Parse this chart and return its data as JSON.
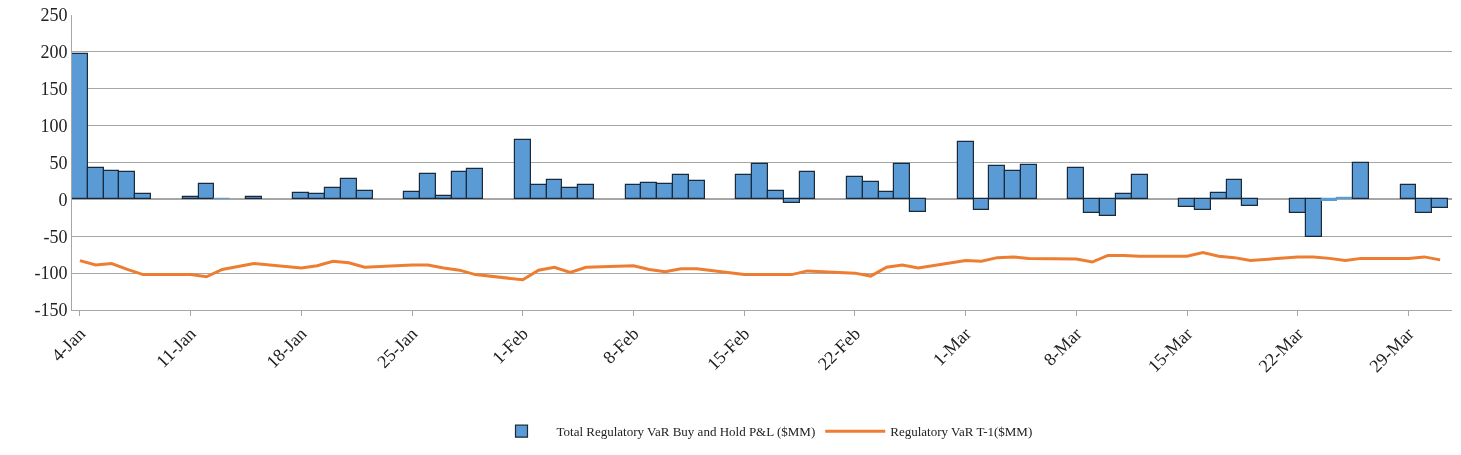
{
  "chart_data": {
    "type": "bar",
    "xlim": [
      "--01-03T12:00",
      "--03-31T18:00"
    ],
    "xticks": [
      {
        "value": "--01-04",
        "label": "4-Jan"
      },
      {
        "value": "--01-11",
        "label": "11-Jan"
      },
      {
        "value": "--01-18",
        "label": "18-Jan"
      },
      {
        "value": "--01-25",
        "label": "25-Jan"
      },
      {
        "value": "--02-01",
        "label": "1-Feb"
      },
      {
        "value": "--02-08",
        "label": "8-Feb"
      },
      {
        "value": "--02-15",
        "label": "15-Feb"
      },
      {
        "value": "--02-22",
        "label": "22-Feb"
      },
      {
        "value": "--03-01",
        "label": "1-Mar"
      },
      {
        "value": "--03-08",
        "label": "8-Mar"
      },
      {
        "value": "--03-15",
        "label": "15-Mar"
      },
      {
        "value": "--03-22",
        "label": "22-Mar"
      },
      {
        "value": "--03-29",
        "label": "29-Mar"
      }
    ],
    "ylim": [
      -150,
      250
    ],
    "yticks": [
      -150,
      -100,
      -50,
      0,
      50,
      100,
      150,
      200,
      250
    ],
    "grid": "y",
    "legend": "bottom",
    "series": [
      {
        "name": "Total Regulatory VaR Buy and Hold P&L ($MM)",
        "color": "#5b9bd5",
        "x": [
          "--01-04",
          "--01-05",
          "--01-06",
          "--01-07",
          "--01-08",
          "--01-11",
          "--01-12",
          "--01-13",
          "--01-15",
          "--01-18",
          "--01-19",
          "--01-20",
          "--01-21",
          "--01-22",
          "--01-25",
          "--01-26",
          "--01-27",
          "--01-28",
          "--01-29",
          "--02-01",
          "--02-02",
          "--02-03",
          "--02-04",
          "--02-05",
          "--02-08",
          "--02-09",
          "--02-10",
          "--02-11",
          "--02-12",
          "--02-15",
          "--02-16",
          "--02-17",
          "--02-18",
          "--02-19",
          "--02-22",
          "--02-23",
          "--02-24",
          "--02-25",
          "--02-26",
          "--03-01",
          "--03-02",
          "--03-03",
          "--03-04",
          "--03-05",
          "--03-08",
          "--03-09",
          "--03-10",
          "--03-11",
          "--03-12",
          "--03-15",
          "--03-16",
          "--03-17",
          "--03-18",
          "--03-19",
          "--03-22",
          "--03-23",
          "--03-24",
          "--03-25",
          "--03-26",
          "--03-29",
          "--03-30",
          "--03-31"
        ],
        "values": [
          197,
          42,
          38,
          37,
          7,
          3,
          21,
          1,
          3,
          9,
          7,
          15,
          28,
          11,
          10,
          34,
          5,
          37,
          41,
          80,
          20,
          26,
          16,
          20,
          20,
          22,
          21,
          33,
          25,
          33,
          48,
          11,
          -5,
          37,
          30,
          24,
          10,
          48,
          -17,
          78,
          -15,
          45,
          38,
          46,
          42,
          -18,
          -23,
          7,
          33,
          -11,
          -14,
          9,
          26,
          -9,
          -18,
          -51,
          -2,
          2,
          49,
          20,
          -18,
          -12
        ]
      },
      {
        "name": "Regulatory VaR T-1($MM)",
        "type": "line",
        "color": "#ed7d31",
        "marker": "none",
        "line_style": "solid",
        "x": [
          "--01-04",
          "--01-05",
          "--01-06",
          "--01-07",
          "--01-08",
          "--01-11",
          "--01-12",
          "--01-13",
          "--01-14",
          "--01-15",
          "--01-18",
          "--01-19",
          "--01-20",
          "--01-21",
          "--01-22",
          "--01-25",
          "--01-26",
          "--01-27",
          "--01-28",
          "--01-29",
          "--02-01",
          "--02-02",
          "--02-03",
          "--02-04",
          "--02-05",
          "--02-08",
          "--02-09",
          "--02-10",
          "--02-11",
          "--02-12",
          "--02-15",
          "--02-16",
          "--02-17",
          "--02-18",
          "--02-19",
          "--02-22",
          "--02-23",
          "--02-24",
          "--02-25",
          "--02-26",
          "--03-01",
          "--03-02",
          "--03-03",
          "--03-04",
          "--03-05",
          "--03-08",
          "--03-09",
          "--03-10",
          "--03-11",
          "--03-12",
          "--03-15",
          "--03-16",
          "--03-17",
          "--03-18",
          "--03-19",
          "--03-22",
          "--03-23",
          "--03-24",
          "--03-25",
          "--03-26",
          "--03-29",
          "--03-30",
          "--03-31"
        ],
        "values": [
          -83,
          -89,
          -87,
          -95,
          -102,
          -102,
          -105,
          -95,
          -91,
          -87,
          -93,
          -90,
          -84,
          -86,
          -92,
          -89,
          -89,
          -93,
          -96,
          -102,
          -109,
          -96,
          -92,
          -99,
          -92,
          -90,
          -95,
          -98,
          -94,
          -94,
          -102,
          -102,
          -102,
          -102,
          -97,
          -100,
          -104,
          -92,
          -89,
          -93,
          -83,
          -84,
          -79,
          -78,
          -80,
          -81,
          -85,
          -76,
          -76,
          -77,
          -77,
          -72,
          -77,
          -79,
          -83,
          -78,
          -78,
          -80,
          -83,
          -80,
          -80,
          -78,
          -82
        ]
      }
    ]
  }
}
